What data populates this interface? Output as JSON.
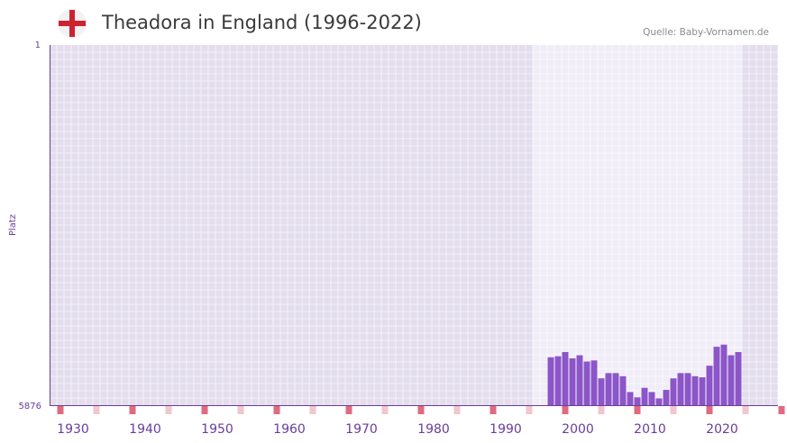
{
  "header": {
    "title": "Theadora in England (1996-2022)",
    "source": "Quelle: Baby-Vornamen.de",
    "flag_icon": "england-flag-icon"
  },
  "colors": {
    "bar": "#8c55c8",
    "axis": "#6a3d9a",
    "grid_bg": "#e3dded",
    "highlight_bg": "#f1edf8",
    "grid_line": "#ffffff",
    "tick_strong": "#e06a80",
    "tick_light": "#f2c6cf",
    "flag_cross": "#cf2230"
  },
  "chart_data": {
    "type": "bar",
    "title": "Theadora in England (1996-2022)",
    "xlabel": "",
    "ylabel": "Platz",
    "y_inverted": true,
    "ylim": [
      1,
      5876
    ],
    "y_ticks": [
      "1",
      "5876"
    ],
    "xlim": [
      1927,
      2028
    ],
    "x_ticks": [
      "1930",
      "1940",
      "1950",
      "1960",
      "1970",
      "1980",
      "1990",
      "2000",
      "2010",
      "2020"
    ],
    "highlight_range": [
      1996,
      2022
    ],
    "x": [
      1996,
      1997,
      1998,
      1999,
      2000,
      2001,
      2002,
      2003,
      2004,
      2005,
      2006,
      2007,
      2008,
      2009,
      2010,
      2011,
      2012,
      2013,
      2014,
      2015,
      2016,
      2017,
      2018,
      2019,
      2020,
      2021,
      2022
    ],
    "values": [
      5095,
      5078,
      5009,
      5112,
      5061,
      5164,
      5146,
      5438,
      5353,
      5353,
      5404,
      5662,
      5748,
      5593,
      5662,
      5765,
      5627,
      5439,
      5353,
      5353,
      5404,
      5421,
      5232,
      4923,
      4888,
      5061,
      5009
    ]
  }
}
